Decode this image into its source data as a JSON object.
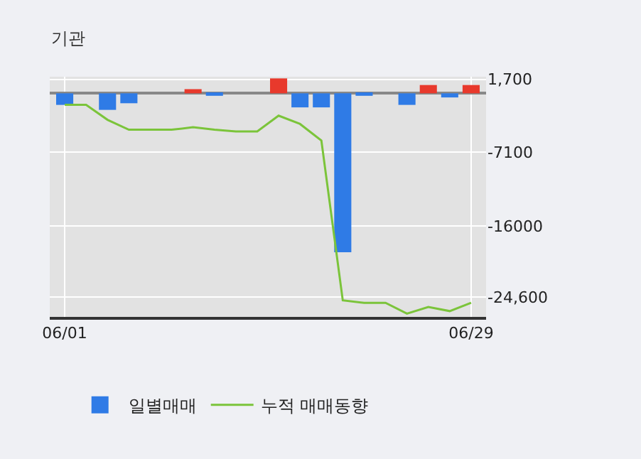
{
  "chart_data": {
    "type": "bar",
    "title": "기관",
    "categories": [
      "06/01",
      null,
      null,
      null,
      null,
      null,
      null,
      null,
      null,
      null,
      null,
      null,
      null,
      null,
      null,
      null,
      null,
      null,
      null,
      "06/29"
    ],
    "series": [
      {
        "name": "일별매매",
        "colors": [
          "#2f7be6",
          "#2f7be6",
          "#2f7be6",
          "#2f7be6",
          "#2f7be6",
          "#2f7be6",
          "#e8392c",
          "#2f7be6",
          "#2f7be6",
          "#2f7be6",
          "#e8392c",
          "#2f7be6",
          "#2f7be6",
          "#2f7be6",
          "#2f7be6",
          "#2f7be6",
          "#2f7be6",
          "#e8392c",
          "#2f7be6",
          "#e8392c"
        ],
        "values": [
          -1400,
          0,
          -2000,
          -1200,
          0,
          0,
          500,
          -300,
          0,
          0,
          1800,
          -1700,
          -1700,
          -19200,
          -300,
          0,
          -1400,
          1000,
          -500,
          1000
        ]
      },
      {
        "name": "누적 매매동향",
        "type": "line",
        "color": "#7bc43a",
        "values": [
          -1400,
          -1400,
          -3200,
          -4400,
          -4400,
          -4400,
          -4100,
          -4400,
          -4600,
          -4600,
          -2700,
          -3700,
          -5700,
          -25000,
          -25300,
          -25300,
          -26600,
          -25800,
          -26300,
          -25300
        ]
      }
    ],
    "ylim": [
      -27000,
      2000
    ],
    "yticks": [
      {
        "value": 1700,
        "label": "1,700"
      },
      {
        "value": -7100,
        "label": "-7100"
      },
      {
        "value": -16000,
        "label": "-16000"
      },
      {
        "value": -24600,
        "label": "-24,600"
      }
    ],
    "grid": true,
    "legend": "bottom",
    "marker": "none",
    "line_style": "solid"
  }
}
